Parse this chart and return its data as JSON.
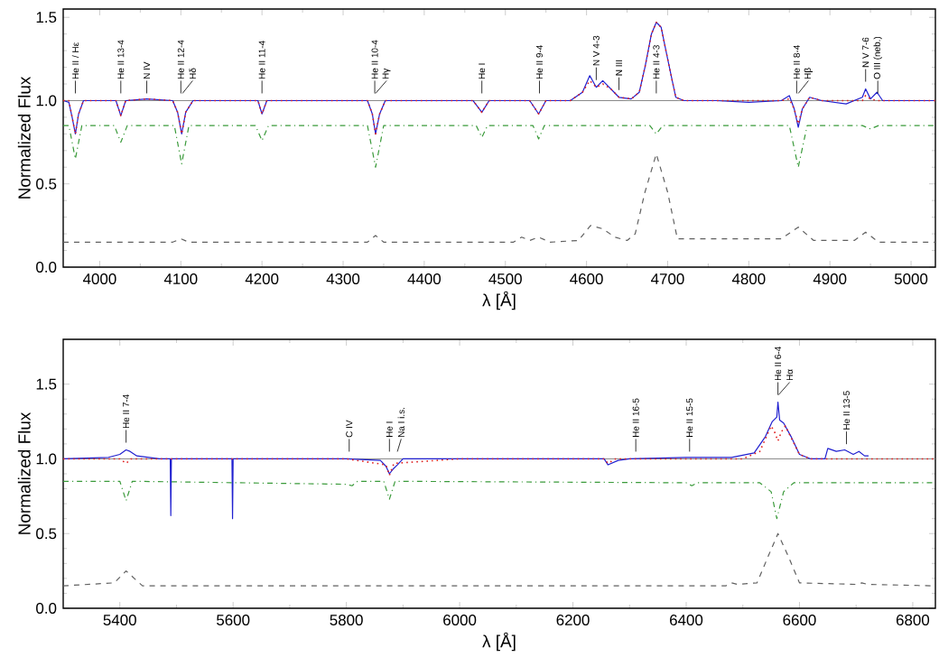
{
  "chart_data": [
    {
      "type": "line",
      "xlabel": "λ [Å]",
      "ylabel": "Normalized Flux",
      "xlim": [
        3955,
        5030
      ],
      "ylim": [
        0,
        1.55
      ],
      "xticks": [
        4000,
        4100,
        4200,
        4300,
        4400,
        4500,
        4600,
        4700,
        4800,
        4900,
        5000
      ],
      "yticks": [
        {
          "value": 0,
          "label": "0.0"
        },
        {
          "value": 0.5,
          "label": "0.5"
        },
        {
          "value": 1,
          "label": "1.0"
        },
        {
          "value": 1.5,
          "label": "1.5"
        }
      ],
      "ref_lines": [
        {
          "axis": "y",
          "value": 1.0,
          "color": "#888888"
        }
      ],
      "series": [
        {
          "color": "#2020d0",
          "line_style": "solid",
          "x": [
            3955,
            3962,
            3966,
            3970,
            3974,
            3980,
            4000,
            4020,
            4026,
            4032,
            4058,
            4090,
            4096,
            4101,
            4106,
            4115,
            4150,
            4195,
            4200,
            4206,
            4250,
            4300,
            4330,
            4336,
            4340,
            4345,
            4352,
            4400,
            4460,
            4471,
            4480,
            4530,
            4541,
            4550,
            4580,
            4595,
            4604,
            4612,
            4620,
            4630,
            4640,
            4655,
            4665,
            4672,
            4680,
            4686,
            4692,
            4700,
            4710,
            4720,
            4760,
            4800,
            4840,
            4850,
            4856,
            4861,
            4866,
            4875,
            4890,
            4920,
            4940,
            4944,
            4950,
            4958,
            4965,
            5000,
            5030
          ],
          "values": [
            1.0,
            0.99,
            0.9,
            0.8,
            0.92,
            1.0,
            1.0,
            1.0,
            0.91,
            1.0,
            1.01,
            1.0,
            0.93,
            0.8,
            0.93,
            1.0,
            1.0,
            1.0,
            0.92,
            1.0,
            1.0,
            1.0,
            1.0,
            0.92,
            0.8,
            0.92,
            1.0,
            1.0,
            1.0,
            0.93,
            1.0,
            1.0,
            0.92,
            1.0,
            1.0,
            1.05,
            1.15,
            1.08,
            1.12,
            1.07,
            1.02,
            1.01,
            1.05,
            1.2,
            1.4,
            1.47,
            1.44,
            1.25,
            1.02,
            1.0,
            1.0,
            0.99,
            1.0,
            1.03,
            0.95,
            0.84,
            0.95,
            1.02,
            1.0,
            0.98,
            1.02,
            1.07,
            1.01,
            1.05,
            1.0,
            1.0,
            1.0
          ]
        },
        {
          "color": "#e02020",
          "line_style": "dotted",
          "x": [
            3955,
            3962,
            3966,
            3970,
            3974,
            3980,
            4000,
            4020,
            4026,
            4032,
            4058,
            4090,
            4096,
            4101,
            4106,
            4115,
            4150,
            4195,
            4200,
            4206,
            4250,
            4300,
            4330,
            4336,
            4340,
            4345,
            4352,
            4400,
            4460,
            4471,
            4480,
            4530,
            4541,
            4550,
            4580,
            4595,
            4604,
            4612,
            4620,
            4630,
            4640,
            4655,
            4665,
            4672,
            4680,
            4686,
            4692,
            4700,
            4710,
            4720,
            4760,
            4800,
            4840,
            4850,
            4856,
            4861,
            4866,
            4875,
            4890,
            4920,
            4940,
            4944,
            4950,
            4958,
            4965,
            5000,
            5030
          ],
          "values": [
            1.0,
            1.0,
            0.9,
            0.8,
            0.92,
            1.0,
            1.0,
            1.0,
            0.91,
            1.0,
            1.01,
            1.0,
            0.93,
            0.8,
            0.93,
            1.0,
            1.0,
            1.0,
            0.92,
            1.0,
            1.0,
            1.0,
            1.0,
            0.92,
            0.8,
            0.92,
            1.0,
            1.0,
            1.0,
            0.93,
            1.0,
            1.0,
            0.92,
            1.0,
            1.0,
            1.05,
            1.12,
            1.08,
            1.1,
            1.07,
            1.02,
            1.01,
            1.05,
            1.2,
            1.4,
            1.47,
            1.44,
            1.25,
            1.02,
            1.0,
            1.0,
            1.0,
            1.0,
            1.01,
            0.95,
            0.86,
            0.95,
            1.02,
            1.0,
            1.0,
            1.0,
            1.03,
            1.01,
            1.0,
            1.0,
            1.0,
            1.0
          ]
        },
        {
          "color": "#3a9a3a",
          "line_style": "dashdot",
          "x": [
            3955,
            3962,
            3970,
            3978,
            4018,
            4026,
            4034,
            4092,
            4101,
            4110,
            4192,
            4200,
            4208,
            4330,
            4340,
            4350,
            4464,
            4471,
            4478,
            4534,
            4541,
            4548,
            4678,
            4686,
            4694,
            4850,
            4861,
            4872,
            4940,
            4950,
            4960,
            5030
          ],
          "values": [
            0.85,
            0.85,
            0.65,
            0.85,
            0.85,
            0.75,
            0.85,
            0.85,
            0.62,
            0.85,
            0.85,
            0.76,
            0.85,
            0.85,
            0.6,
            0.85,
            0.85,
            0.78,
            0.85,
            0.85,
            0.77,
            0.85,
            0.85,
            0.8,
            0.85,
            0.85,
            0.6,
            0.85,
            0.85,
            0.83,
            0.85,
            0.85
          ]
        },
        {
          "color": "#606060",
          "line_style": "dashed",
          "x": [
            3955,
            4090,
            4100,
            4110,
            4330,
            4340,
            4350,
            4510,
            4520,
            4530,
            4541,
            4555,
            4590,
            4605,
            4620,
            4635,
            4650,
            4660,
            4672,
            4686,
            4700,
            4712,
            4840,
            4861,
            4880,
            4930,
            4944,
            4960,
            5030
          ],
          "values": [
            0.15,
            0.15,
            0.17,
            0.15,
            0.15,
            0.19,
            0.15,
            0.15,
            0.18,
            0.16,
            0.18,
            0.15,
            0.16,
            0.25,
            0.23,
            0.18,
            0.16,
            0.2,
            0.45,
            0.68,
            0.45,
            0.17,
            0.17,
            0.24,
            0.16,
            0.16,
            0.21,
            0.15,
            0.15
          ]
        }
      ],
      "annotations": [
        {
          "text": "He II / Hε",
          "x": 3970,
          "y": 1.0
        },
        {
          "text": "He II 13-4",
          "x": 4026,
          "y": 1.0
        },
        {
          "text": "N IV",
          "x": 4058,
          "y": 1.0
        },
        {
          "text": "He II 12-4",
          "x": 4100,
          "y": 1.0
        },
        {
          "text": "Hδ",
          "x": 4102,
          "y": 1.0
        },
        {
          "text": "He II 11-4",
          "x": 4200,
          "y": 1.0
        },
        {
          "text": "He II 10-4",
          "x": 4339,
          "y": 1.0
        },
        {
          "text": "Hγ",
          "x": 4340,
          "y": 1.0
        },
        {
          "text": "He I",
          "x": 4471,
          "y": 1.0
        },
        {
          "text": "He II 9-4",
          "x": 4542,
          "y": 1.0
        },
        {
          "text": "N V 4-3",
          "x": 4612,
          "y": 1.08
        },
        {
          "text": "N III",
          "x": 4640,
          "y": 1.02
        },
        {
          "text": "He II 4-3",
          "x": 4686,
          "y": 1.0
        },
        {
          "text": "He II 8-4",
          "x": 4859,
          "y": 1.0
        },
        {
          "text": "Hβ",
          "x": 4861,
          "y": 1.0
        },
        {
          "text": "N V 7-6",
          "x": 4944,
          "y": 1.07
        },
        {
          "text": "O III (neb.)",
          "x": 4959,
          "y": 1.0
        }
      ]
    },
    {
      "type": "line",
      "xlabel": "λ [Å]",
      "ylabel": "Normalized Flux",
      "xlim": [
        5300,
        6840
      ],
      "ylim": [
        0,
        1.8
      ],
      "xticks": [
        5400,
        5600,
        5800,
        6000,
        6200,
        6400,
        6600,
        6800
      ],
      "yticks": [
        {
          "value": 0,
          "label": "0.0"
        },
        {
          "value": 0.5,
          "label": "0.5"
        },
        {
          "value": 1,
          "label": "1.0"
        },
        {
          "value": 1.5,
          "label": "1.5"
        }
      ],
      "ref_lines": [
        {
          "axis": "y",
          "value": 1.0,
          "color": "#888888"
        }
      ],
      "series": [
        {
          "color": "#2020d0",
          "line_style": "solid",
          "x": [
            5300,
            5380,
            5400,
            5411,
            5418,
            5430,
            5470,
            5489,
            5490,
            5491,
            5520,
            5598,
            5599,
            5600,
            5640,
            5700,
            5800,
            5860,
            5870,
            5876,
            5882,
            5890,
            5900,
            6000,
            6100,
            6200,
            6255,
            6262,
            6280,
            6300,
            6400,
            6480,
            6520,
            6540,
            6552,
            6560,
            6562,
            6565,
            6572,
            6585,
            6600,
            6620,
            6645,
            6650,
            6665,
            6680,
            6695,
            6705,
            6715,
            6722
          ],
          "values": [
            1.0,
            1.01,
            1.03,
            1.06,
            1.05,
            1.02,
            1.0,
            1.0,
            0.62,
            1.0,
            1.0,
            1.0,
            0.6,
            1.0,
            1.0,
            1.0,
            1.0,
            0.99,
            0.95,
            0.9,
            0.93,
            0.96,
            1.0,
            1.0,
            1.0,
            1.0,
            1.0,
            0.96,
            0.99,
            1.0,
            1.01,
            1.01,
            1.04,
            1.15,
            1.25,
            1.28,
            1.38,
            1.26,
            1.24,
            1.15,
            1.03,
            1.0,
            1.0,
            1.07,
            1.05,
            1.06,
            1.03,
            1.05,
            1.02,
            1.02
          ]
        },
        {
          "color": "#e02020",
          "line_style": "dotted",
          "x": [
            5300,
            5400,
            5411,
            5420,
            5800,
            5870,
            5876,
            5884,
            6000,
            6255,
            6262,
            6275,
            6500,
            6530,
            6550,
            6556,
            6562,
            6568,
            6575,
            6600,
            6620,
            6840
          ],
          "values": [
            1.0,
            1.0,
            0.97,
            1.0,
            1.0,
            0.96,
            0.89,
            0.97,
            1.0,
            1.0,
            0.97,
            1.0,
            1.0,
            1.05,
            1.22,
            1.18,
            1.12,
            1.18,
            1.22,
            1.03,
            1.0,
            1.0
          ]
        },
        {
          "color": "#3a9a3a",
          "line_style": "dashdot",
          "x": [
            5300,
            5400,
            5411,
            5422,
            5800,
            5810,
            5820,
            5866,
            5876,
            5886,
            6400,
            6410,
            6420,
            6530,
            6550,
            6560,
            6572,
            6590,
            6840
          ],
          "values": [
            0.85,
            0.85,
            0.72,
            0.85,
            0.83,
            0.82,
            0.85,
            0.85,
            0.73,
            0.85,
            0.84,
            0.82,
            0.84,
            0.84,
            0.78,
            0.6,
            0.78,
            0.84,
            0.84
          ]
        },
        {
          "color": "#606060",
          "line_style": "dashed",
          "x": [
            5300,
            5390,
            5411,
            5440,
            6470,
            6480,
            6490,
            6525,
            6545,
            6562,
            6580,
            6600,
            6700,
            6710,
            6720,
            6840
          ],
          "values": [
            0.15,
            0.17,
            0.25,
            0.15,
            0.15,
            0.17,
            0.16,
            0.17,
            0.35,
            0.5,
            0.35,
            0.17,
            0.16,
            0.17,
            0.16,
            0.15
          ]
        }
      ],
      "annotations": [
        {
          "text": "He II 7-4",
          "x": 5411,
          "y": 1.06
        },
        {
          "text": "C IV",
          "x": 5805,
          "y": 1.0
        },
        {
          "text": "He I",
          "x": 5876,
          "y": 1.0
        },
        {
          "text": "Na I i.s.",
          "x": 5890,
          "y": 1.0
        },
        {
          "text": "He II 16-5",
          "x": 6311,
          "y": 1.0
        },
        {
          "text": "He II 15-5",
          "x": 6406,
          "y": 1.0
        },
        {
          "text": "He II 6-4",
          "x": 6562,
          "y": 1.38
        },
        {
          "text": "Hα",
          "x": 6563,
          "y": 1.38
        },
        {
          "text": "He II 13-5",
          "x": 6683,
          "y": 1.05
        }
      ]
    }
  ]
}
